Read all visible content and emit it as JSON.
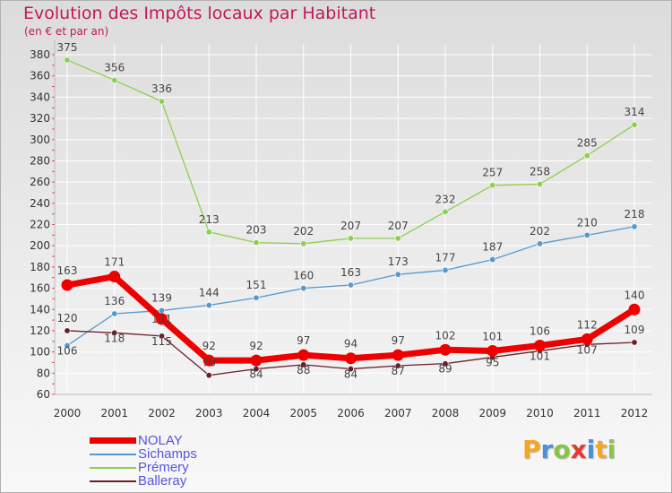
{
  "header": {
    "title": "Evolution des Impôts locaux par Habitant",
    "subtitle": "(en € et par an)"
  },
  "logo": {
    "text": "Proxiti",
    "colors": [
      "#f4a623",
      "#4a90d9",
      "#8bc34a",
      "#e53935",
      "#4a90d9",
      "#f4a623",
      "#8bc34a"
    ]
  },
  "colors": {
    "title": "#c2185b",
    "axis_tick": "#e05050",
    "grid": "#ffffff"
  },
  "chart_data": {
    "type": "line",
    "title": "Evolution des Impôts locaux par Habitant",
    "subtitle": "(en € et par an)",
    "xlabel": "",
    "ylabel": "",
    "x": [
      "2000",
      "2001",
      "2002",
      "2003",
      "2004",
      "2005",
      "2006",
      "2007",
      "2008",
      "2009",
      "2010",
      "2011",
      "2012"
    ],
    "ylim": [
      60,
      380
    ],
    "yticks": [
      60,
      80,
      100,
      120,
      140,
      160,
      180,
      200,
      220,
      240,
      260,
      280,
      300,
      320,
      340,
      360,
      380
    ],
    "grid": true,
    "legend_position": "bottom-left",
    "series": [
      {
        "name": "Prémery",
        "color": "#8bd04c",
        "width": 1.3,
        "radius": 3.2,
        "values": [
          375,
          356,
          336,
          213,
          203,
          202,
          207,
          207,
          232,
          257,
          258,
          285,
          314
        ],
        "labels": [
          "375",
          "356",
          "336",
          "213",
          "203",
          "202",
          "207",
          "207",
          "232",
          "257",
          "258",
          "285",
          "314"
        ]
      },
      {
        "name": "Sichamps",
        "color": "#5599cc",
        "width": 1.3,
        "radius": 3.2,
        "values": [
          106,
          136,
          139,
          144,
          151,
          160,
          163,
          173,
          177,
          187,
          202,
          210,
          218
        ],
        "labels": [
          "106",
          "136",
          "139",
          "144",
          "151",
          "160",
          "163",
          "173",
          "177",
          "187",
          "202",
          "210",
          "218"
        ]
      },
      {
        "name": "Balleray",
        "color": "#6b1f2a",
        "width": 1.3,
        "radius": 3.2,
        "values": [
          120,
          118,
          115,
          78,
          84,
          88,
          84,
          87,
          89,
          95,
          101,
          107,
          109
        ],
        "labels": [
          "120",
          "118",
          "115",
          "78",
          "84",
          "88",
          "84",
          "87",
          "89",
          "95",
          "101",
          "107",
          "109"
        ]
      },
      {
        "name": "NOLAY",
        "color": "#ee0000",
        "width": 7,
        "radius": 6.5,
        "values": [
          163,
          171,
          131,
          92,
          92,
          97,
          94,
          97,
          102,
          101,
          106,
          112,
          140
        ],
        "labels": [
          "163",
          "171",
          "131",
          "92",
          "92",
          "97",
          "94",
          "97",
          "102",
          "101",
          "106",
          "112",
          "140"
        ]
      }
    ],
    "legend_order": [
      "NOLAY",
      "Sichamps",
      "Prémery",
      "Balleray"
    ]
  }
}
